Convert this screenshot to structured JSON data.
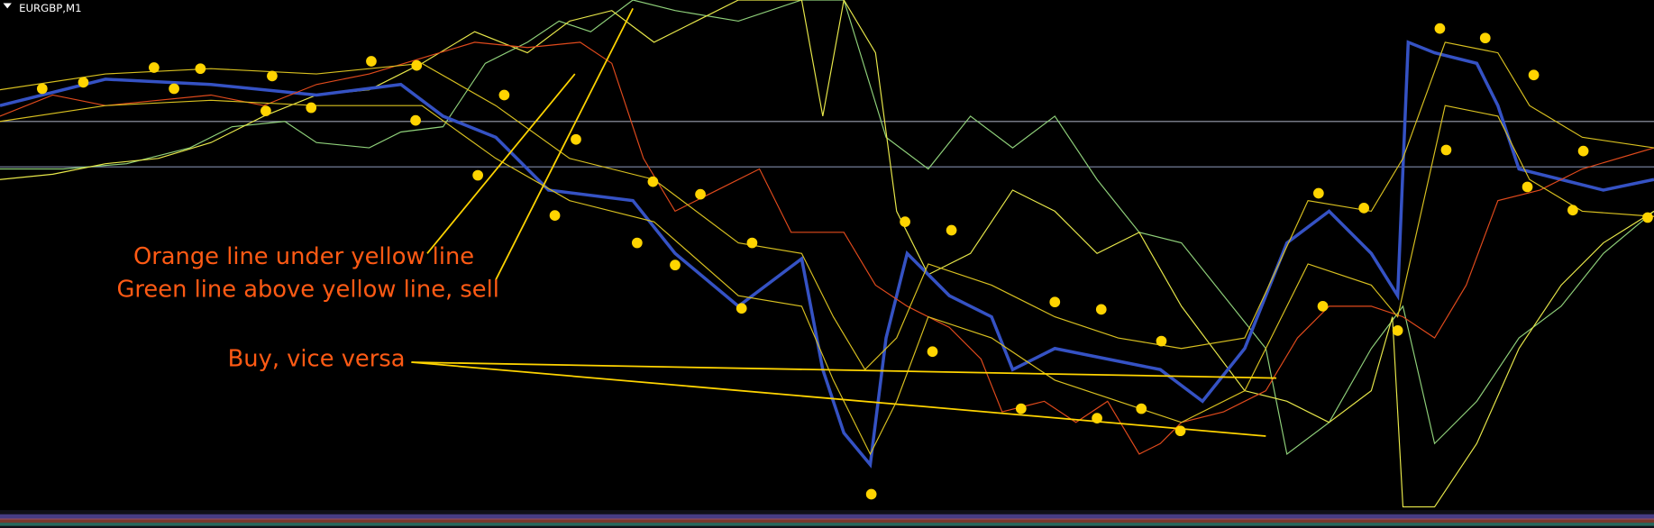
{
  "window": {
    "title": "EURGBP,M1"
  },
  "annotations": [
    "Orange line under yellow line",
    "Green line above yellow line, sell",
    "Buy, vice versa"
  ]
}
